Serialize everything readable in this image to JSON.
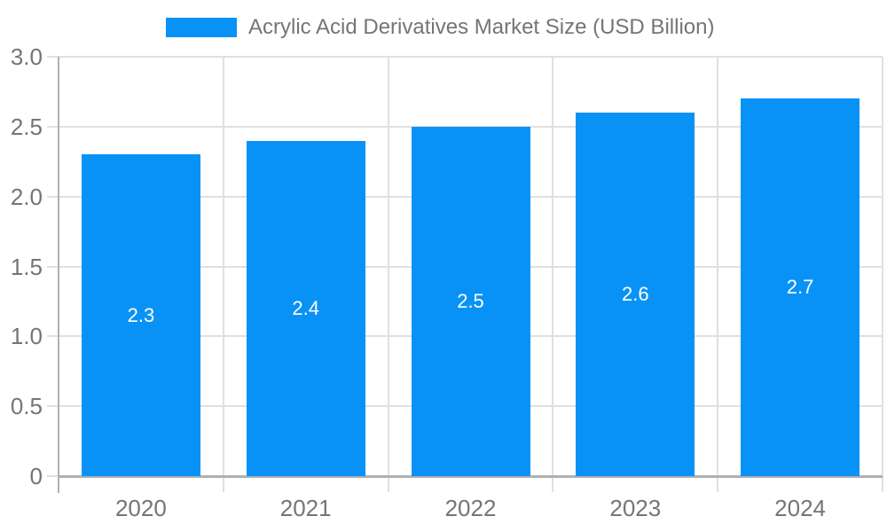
{
  "chart_data": {
    "type": "bar",
    "title": "Acrylic Acid Derivatives Market Size (USD Billion)",
    "legend_entries": [
      "Acrylic Acid Derivatives Market Size (USD Billion)"
    ],
    "legend_position": "top",
    "categories": [
      "2020",
      "2021",
      "2022",
      "2023",
      "2024"
    ],
    "values": [
      2.3,
      2.4,
      2.5,
      2.6,
      2.7
    ],
    "value_labels": [
      "2.3",
      "2.4",
      "2.5",
      "2.6",
      "2.7"
    ],
    "xlabel": "",
    "ylabel": "",
    "ylim": [
      0,
      3.0
    ],
    "y_ticks": [
      0,
      0.5,
      1.0,
      1.5,
      2.0,
      2.5,
      3.0
    ],
    "y_tick_labels": [
      "0",
      "0.5",
      "1.0",
      "1.5",
      "2.0",
      "2.5",
      "3.0"
    ],
    "grid": true,
    "colors": {
      "bar": "#0992f6",
      "value_label": "#ffffff",
      "axis_text": "#757575",
      "gridline": "#e0e0e0",
      "axis_line": "#b0b0b0",
      "background": "#ffffff"
    }
  }
}
